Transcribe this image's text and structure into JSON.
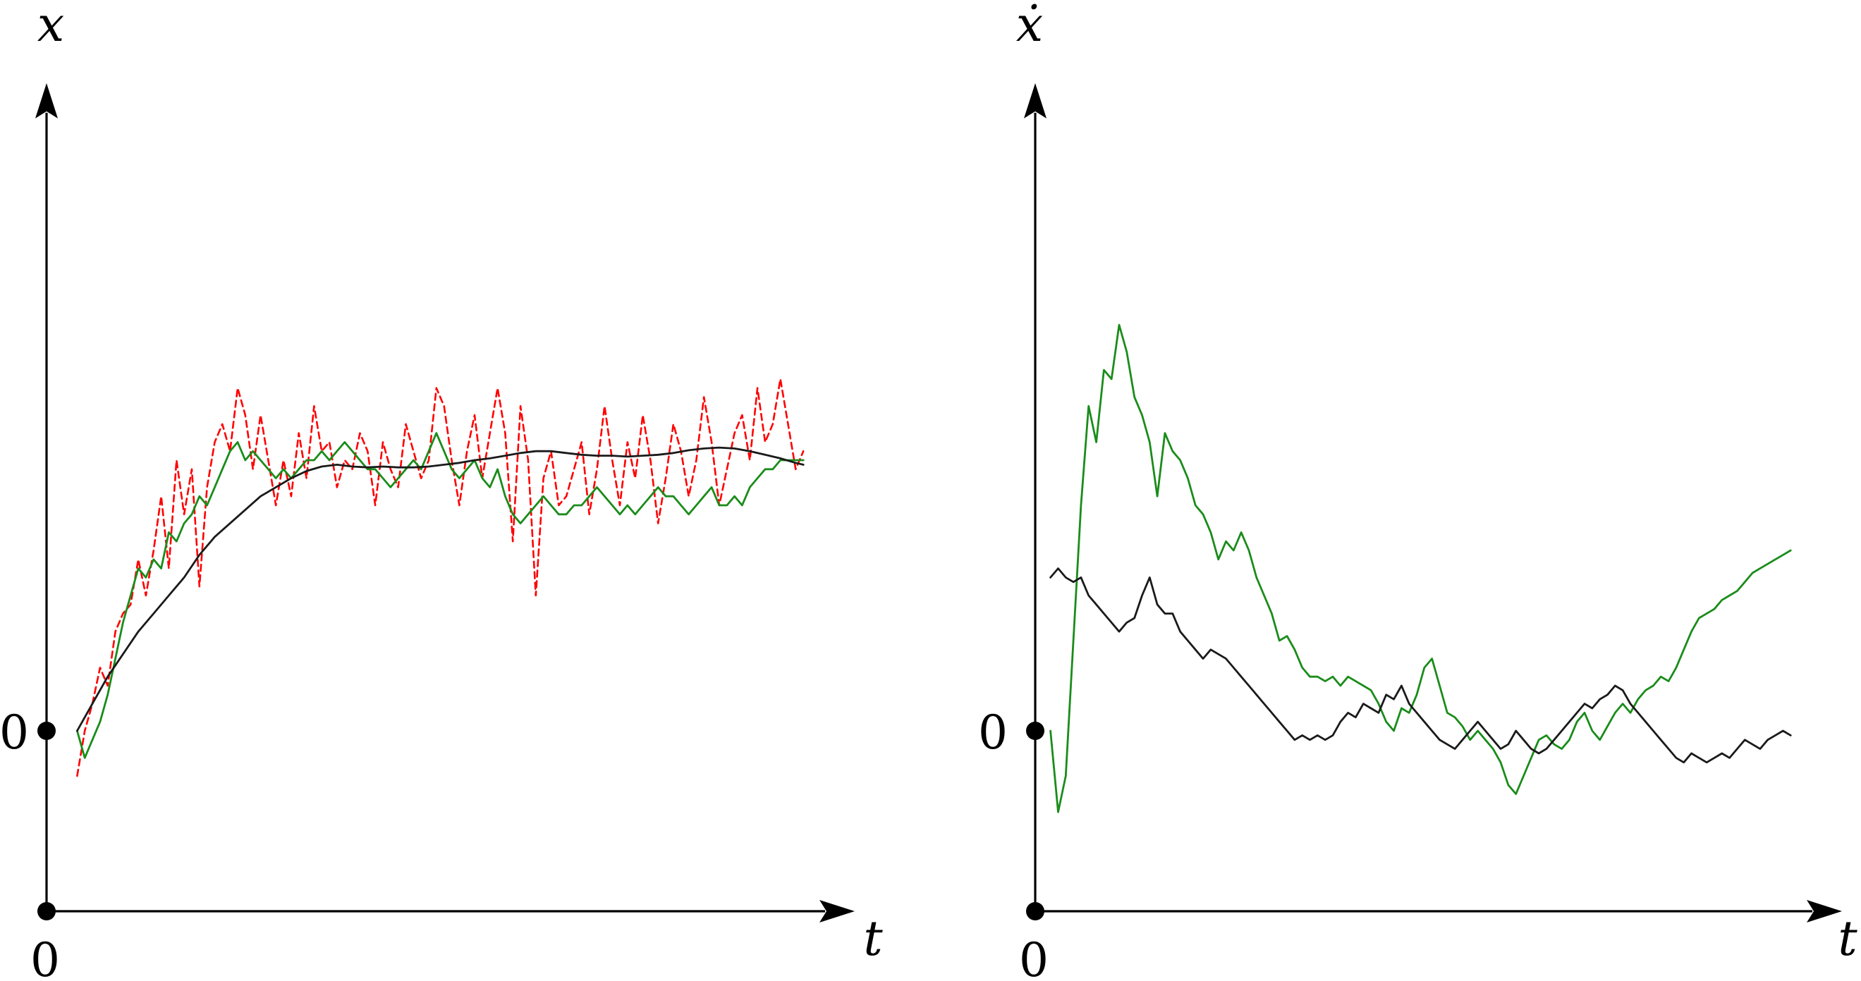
{
  "chart_data": [
    {
      "type": "line",
      "ylabel": "x",
      "xlabel": "t",
      "origin_label_x": "0",
      "origin_label_y": "0",
      "xlim": [
        0,
        1
      ],
      "ylim": [
        -1.2,
        4.7
      ],
      "grid": false,
      "legend": "none",
      "series": [
        {
          "color": "#ff0000",
          "dash": "dashed",
          "x": [
            0.04,
            0.05,
            0.06,
            0.07,
            0.08,
            0.09,
            0.1,
            0.11,
            0.12,
            0.13,
            0.14,
            0.15,
            0.16,
            0.17,
            0.18,
            0.19,
            0.2,
            0.21,
            0.22,
            0.23,
            0.24,
            0.25,
            0.26,
            0.27,
            0.28,
            0.29,
            0.3,
            0.31,
            0.32,
            0.33,
            0.34,
            0.35,
            0.36,
            0.37,
            0.38,
            0.39,
            0.4,
            0.41,
            0.42,
            0.43,
            0.44,
            0.45,
            0.46,
            0.47,
            0.48,
            0.49,
            0.5,
            0.51,
            0.52,
            0.53,
            0.54,
            0.55,
            0.56,
            0.57,
            0.58,
            0.59,
            0.6,
            0.61,
            0.62,
            0.63,
            0.64,
            0.65,
            0.66,
            0.67,
            0.68,
            0.69,
            0.7,
            0.71,
            0.72,
            0.73,
            0.74,
            0.75,
            0.76,
            0.77,
            0.78,
            0.79,
            0.8,
            0.81,
            0.82,
            0.83,
            0.84,
            0.85,
            0.86,
            0.87,
            0.88,
            0.89,
            0.9,
            0.91,
            0.92,
            0.93,
            0.94,
            0.95,
            0.96,
            0.97,
            0.98,
            0.99
          ],
          "y": [
            -0.5,
            0.0,
            0.3,
            0.7,
            0.5,
            1.1,
            1.3,
            1.4,
            1.9,
            1.5,
            2.0,
            2.6,
            1.8,
            3.0,
            2.4,
            2.9,
            1.6,
            2.7,
            3.2,
            3.4,
            3.1,
            3.8,
            3.5,
            2.9,
            3.5,
            3.0,
            2.5,
            3.0,
            2.6,
            3.3,
            2.8,
            3.6,
            3.1,
            3.2,
            2.7,
            3.0,
            2.9,
            3.3,
            3.1,
            2.5,
            3.2,
            2.9,
            2.7,
            3.4,
            3.1,
            2.8,
            3.0,
            3.8,
            3.6,
            3.0,
            2.5,
            3.1,
            3.5,
            2.8,
            3.3,
            3.8,
            3.3,
            2.1,
            3.6,
            3.0,
            1.5,
            2.8,
            3.1,
            2.5,
            2.6,
            2.9,
            3.2,
            2.4,
            2.9,
            3.6,
            3.0,
            2.5,
            3.2,
            2.8,
            3.5,
            3.0,
            2.3,
            2.8,
            3.4,
            3.1,
            2.6,
            3.0,
            3.7,
            3.2,
            2.5,
            2.9,
            3.3,
            3.5,
            3.0,
            3.8,
            3.2,
            3.4,
            3.9,
            3.4,
            2.9,
            3.1
          ]
        },
        {
          "color": "#1a8c1a",
          "dash": "solid",
          "x": [
            0.04,
            0.05,
            0.06,
            0.07,
            0.08,
            0.09,
            0.1,
            0.11,
            0.12,
            0.13,
            0.14,
            0.15,
            0.16,
            0.17,
            0.18,
            0.19,
            0.2,
            0.21,
            0.22,
            0.23,
            0.24,
            0.25,
            0.26,
            0.27,
            0.28,
            0.29,
            0.3,
            0.31,
            0.32,
            0.33,
            0.34,
            0.35,
            0.36,
            0.37,
            0.38,
            0.39,
            0.4,
            0.41,
            0.42,
            0.43,
            0.44,
            0.45,
            0.46,
            0.47,
            0.48,
            0.49,
            0.5,
            0.51,
            0.52,
            0.53,
            0.54,
            0.55,
            0.56,
            0.57,
            0.58,
            0.59,
            0.6,
            0.61,
            0.62,
            0.63,
            0.64,
            0.65,
            0.66,
            0.67,
            0.68,
            0.69,
            0.7,
            0.71,
            0.72,
            0.73,
            0.74,
            0.75,
            0.76,
            0.77,
            0.78,
            0.79,
            0.8,
            0.81,
            0.82,
            0.83,
            0.84,
            0.85,
            0.86,
            0.87,
            0.88,
            0.89,
            0.9,
            0.91,
            0.92,
            0.93,
            0.94,
            0.95,
            0.96,
            0.97,
            0.98,
            0.99
          ],
          "y": [
            0.0,
            -0.3,
            -0.1,
            0.1,
            0.4,
            0.8,
            1.2,
            1.5,
            1.8,
            1.7,
            1.9,
            1.8,
            2.2,
            2.1,
            2.3,
            2.4,
            2.6,
            2.5,
            2.7,
            2.9,
            3.1,
            3.2,
            3.0,
            3.1,
            3.0,
            2.9,
            2.8,
            2.9,
            2.8,
            2.9,
            3.0,
            3.0,
            3.1,
            3.0,
            3.1,
            3.2,
            3.1,
            3.0,
            2.9,
            2.9,
            2.8,
            2.7,
            2.8,
            2.9,
            3.0,
            2.9,
            3.1,
            3.3,
            3.1,
            2.9,
            2.8,
            2.9,
            3.0,
            2.8,
            2.7,
            2.9,
            2.6,
            2.4,
            2.3,
            2.4,
            2.5,
            2.6,
            2.5,
            2.4,
            2.4,
            2.5,
            2.5,
            2.6,
            2.7,
            2.6,
            2.5,
            2.4,
            2.5,
            2.4,
            2.5,
            2.6,
            2.7,
            2.6,
            2.6,
            2.5,
            2.4,
            2.5,
            2.6,
            2.7,
            2.5,
            2.5,
            2.6,
            2.5,
            2.7,
            2.8,
            2.9,
            2.9,
            3.0,
            3.0,
            3.0,
            3.0
          ]
        },
        {
          "color": "#1a1a1a",
          "dash": "solid",
          "x": [
            0.04,
            0.06,
            0.08,
            0.1,
            0.12,
            0.14,
            0.16,
            0.18,
            0.2,
            0.22,
            0.24,
            0.26,
            0.28,
            0.3,
            0.32,
            0.34,
            0.36,
            0.38,
            0.4,
            0.42,
            0.44,
            0.46,
            0.48,
            0.5,
            0.52,
            0.54,
            0.56,
            0.58,
            0.6,
            0.62,
            0.64,
            0.66,
            0.68,
            0.7,
            0.72,
            0.74,
            0.76,
            0.78,
            0.8,
            0.82,
            0.84,
            0.86,
            0.88,
            0.9,
            0.92,
            0.94,
            0.96,
            0.98,
            0.99
          ],
          "y": [
            0.0,
            0.3,
            0.6,
            0.85,
            1.1,
            1.3,
            1.5,
            1.7,
            1.95,
            2.15,
            2.3,
            2.45,
            2.6,
            2.7,
            2.8,
            2.88,
            2.93,
            2.95,
            2.93,
            2.92,
            2.93,
            2.92,
            2.92,
            2.93,
            2.95,
            2.97,
            3.0,
            3.02,
            3.05,
            3.08,
            3.1,
            3.1,
            3.08,
            3.06,
            3.05,
            3.05,
            3.04,
            3.05,
            3.06,
            3.08,
            3.11,
            3.13,
            3.14,
            3.13,
            3.1,
            3.06,
            3.02,
            2.97,
            2.95
          ]
        }
      ]
    },
    {
      "type": "line",
      "ylabel": "ẋ",
      "xlabel": "t",
      "origin_label_x": "0",
      "origin_label_y": "0",
      "xlim": [
        0,
        1
      ],
      "ylim": [
        -1.2,
        4.7
      ],
      "grid": false,
      "legend": "none",
      "series": [
        {
          "color": "#1a8c1a",
          "dash": "solid",
          "x": [
            0.02,
            0.03,
            0.04,
            0.05,
            0.06,
            0.07,
            0.08,
            0.09,
            0.1,
            0.11,
            0.12,
            0.13,
            0.14,
            0.15,
            0.16,
            0.17,
            0.18,
            0.19,
            0.2,
            0.21,
            0.22,
            0.23,
            0.24,
            0.25,
            0.26,
            0.27,
            0.28,
            0.29,
            0.3,
            0.31,
            0.32,
            0.33,
            0.34,
            0.35,
            0.36,
            0.37,
            0.38,
            0.39,
            0.4,
            0.41,
            0.42,
            0.43,
            0.44,
            0.45,
            0.46,
            0.47,
            0.48,
            0.49,
            0.5,
            0.51,
            0.52,
            0.53,
            0.54,
            0.55,
            0.56,
            0.57,
            0.58,
            0.59,
            0.6,
            0.61,
            0.62,
            0.63,
            0.64,
            0.65,
            0.66,
            0.67,
            0.68,
            0.69,
            0.7,
            0.71,
            0.72,
            0.73,
            0.74,
            0.75,
            0.76,
            0.77,
            0.78,
            0.79,
            0.8,
            0.81,
            0.82,
            0.83,
            0.84,
            0.85,
            0.86,
            0.87,
            0.88,
            0.89,
            0.9,
            0.91,
            0.92,
            0.93,
            0.94,
            0.95,
            0.96,
            0.97,
            0.98,
            0.99
          ],
          "y": [
            0.0,
            -0.9,
            -0.5,
            1.0,
            2.5,
            3.6,
            3.2,
            4.0,
            3.9,
            4.5,
            4.2,
            3.7,
            3.5,
            3.2,
            2.6,
            3.3,
            3.1,
            3.0,
            2.8,
            2.5,
            2.4,
            2.2,
            1.9,
            2.1,
            2.0,
            2.2,
            2.0,
            1.7,
            1.5,
            1.3,
            1.0,
            1.05,
            0.9,
            0.7,
            0.6,
            0.6,
            0.55,
            0.6,
            0.5,
            0.6,
            0.55,
            0.5,
            0.45,
            0.3,
            0.1,
            0.0,
            0.25,
            0.2,
            0.4,
            0.7,
            0.8,
            0.5,
            0.2,
            0.15,
            0.05,
            -0.1,
            0.0,
            -0.1,
            -0.2,
            -0.35,
            -0.6,
            -0.7,
            -0.5,
            -0.3,
            -0.1,
            -0.05,
            -0.15,
            -0.2,
            -0.1,
            0.1,
            0.2,
            0.0,
            -0.1,
            0.05,
            0.2,
            0.3,
            0.2,
            0.35,
            0.45,
            0.5,
            0.6,
            0.55,
            0.7,
            0.9,
            1.1,
            1.25,
            1.3,
            1.35,
            1.45,
            1.5,
            1.55,
            1.65,
            1.75,
            1.8,
            1.85,
            1.9,
            1.95,
            2.0
          ]
        },
        {
          "color": "#1a1a1a",
          "dash": "solid",
          "x": [
            0.02,
            0.03,
            0.04,
            0.05,
            0.06,
            0.07,
            0.08,
            0.09,
            0.1,
            0.11,
            0.12,
            0.13,
            0.14,
            0.15,
            0.16,
            0.17,
            0.18,
            0.19,
            0.2,
            0.21,
            0.22,
            0.23,
            0.24,
            0.25,
            0.26,
            0.27,
            0.28,
            0.29,
            0.3,
            0.31,
            0.32,
            0.33,
            0.34,
            0.35,
            0.36,
            0.37,
            0.38,
            0.39,
            0.4,
            0.41,
            0.42,
            0.43,
            0.44,
            0.45,
            0.46,
            0.47,
            0.48,
            0.49,
            0.5,
            0.51,
            0.52,
            0.53,
            0.54,
            0.55,
            0.56,
            0.57,
            0.58,
            0.59,
            0.6,
            0.61,
            0.62,
            0.63,
            0.64,
            0.65,
            0.66,
            0.67,
            0.68,
            0.69,
            0.7,
            0.71,
            0.72,
            0.73,
            0.74,
            0.75,
            0.76,
            0.77,
            0.78,
            0.79,
            0.8,
            0.81,
            0.82,
            0.83,
            0.84,
            0.85,
            0.86,
            0.87,
            0.88,
            0.89,
            0.9,
            0.91,
            0.92,
            0.93,
            0.94,
            0.95,
            0.96,
            0.97,
            0.98,
            0.99
          ],
          "y": [
            1.7,
            1.8,
            1.7,
            1.65,
            1.7,
            1.5,
            1.4,
            1.3,
            1.2,
            1.1,
            1.2,
            1.25,
            1.5,
            1.7,
            1.4,
            1.3,
            1.3,
            1.1,
            1.0,
            0.9,
            0.8,
            0.9,
            0.85,
            0.8,
            0.7,
            0.6,
            0.5,
            0.4,
            0.3,
            0.2,
            0.1,
            0.0,
            -0.1,
            -0.05,
            -0.1,
            -0.05,
            -0.1,
            -0.05,
            0.1,
            0.2,
            0.15,
            0.3,
            0.25,
            0.2,
            0.4,
            0.35,
            0.5,
            0.3,
            0.2,
            0.1,
            0.0,
            -0.1,
            -0.15,
            -0.2,
            -0.1,
            0.0,
            0.1,
            0.0,
            -0.1,
            -0.2,
            -0.15,
            0.0,
            -0.1,
            -0.2,
            -0.25,
            -0.2,
            -0.1,
            0.0,
            0.1,
            0.2,
            0.3,
            0.25,
            0.35,
            0.4,
            0.5,
            0.45,
            0.3,
            0.2,
            0.1,
            0.0,
            -0.1,
            -0.2,
            -0.3,
            -0.35,
            -0.25,
            -0.3,
            -0.35,
            -0.3,
            -0.25,
            -0.3,
            -0.2,
            -0.1,
            -0.15,
            -0.2,
            -0.1,
            -0.05,
            0.0,
            -0.05
          ]
        }
      ]
    }
  ]
}
